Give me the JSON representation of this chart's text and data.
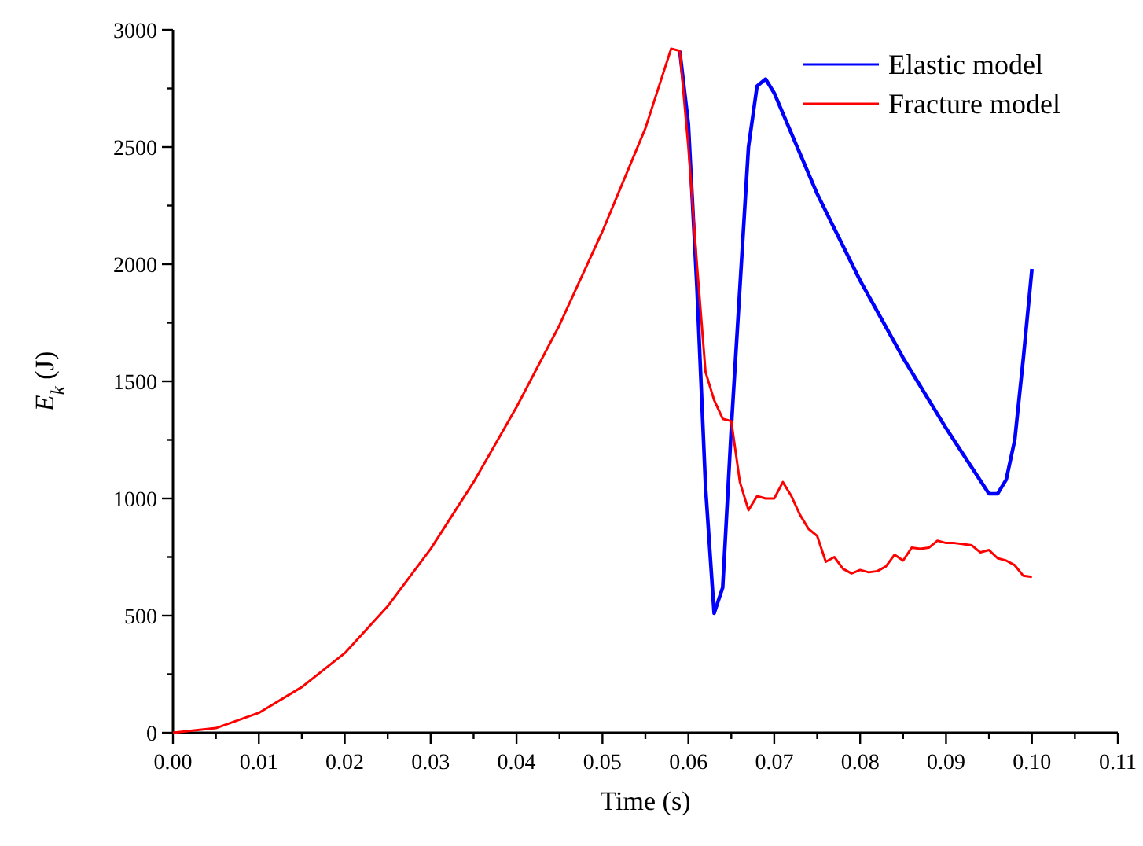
{
  "chart_data": {
    "type": "line",
    "xlabel": "Time (s)",
    "ylabel": "E$_{k}$ (J)",
    "xlim": [
      0,
      0.11
    ],
    "ylim": [
      0,
      3000
    ],
    "xticks": [
      {
        "value": 0,
        "label": "0.00"
      },
      {
        "value": 0.005,
        "label": null
      },
      {
        "value": 0.01,
        "label": "0.01"
      },
      {
        "value": 0.015,
        "label": null
      },
      {
        "value": 0.02,
        "label": "0.02"
      },
      {
        "value": 0.025,
        "label": null
      },
      {
        "value": 0.03,
        "label": "0.03"
      },
      {
        "value": 0.035,
        "label": null
      },
      {
        "value": 0.04,
        "label": "0.04"
      },
      {
        "value": 0.045,
        "label": null
      },
      {
        "value": 0.05,
        "label": "0.05"
      },
      {
        "value": 0.055,
        "label": null
      },
      {
        "value": 0.06,
        "label": "0.06"
      },
      {
        "value": 0.065,
        "label": null
      },
      {
        "value": 0.07,
        "label": "0.07"
      },
      {
        "value": 0.075,
        "label": null
      },
      {
        "value": 0.08,
        "label": "0.08"
      },
      {
        "value": 0.085,
        "label": null
      },
      {
        "value": 0.09,
        "label": "0.09"
      },
      {
        "value": 0.095,
        "label": null
      },
      {
        "value": 0.1,
        "label": "0.10"
      },
      {
        "value": 0.105,
        "label": null
      },
      {
        "value": 0.11,
        "label": "0.11"
      }
    ],
    "yticks": [
      0,
      {
        "value": 250,
        "label": null
      },
      500,
      {
        "value": 750,
        "label": null
      },
      1000,
      {
        "value": 1250,
        "label": null
      },
      1500,
      {
        "value": 1750,
        "label": null
      },
      2000,
      {
        "value": 2250,
        "label": null
      },
      2500,
      {
        "value": 2750,
        "label": null
      },
      3000
    ],
    "legend": "top right",
    "grid": false,
    "marker": "none",
    "line_style": "solid",
    "series": [
      {
        "name": "Elastic model",
        "color": "#0000ff",
        "x": [
          0.059,
          0.06,
          0.061,
          0.062,
          0.063,
          0.064,
          0.065,
          0.066,
          0.067,
          0.068,
          0.069,
          0.07,
          0.075,
          0.08,
          0.085,
          0.09,
          0.095,
          0.096,
          0.097,
          0.098,
          0.099,
          0.1
        ],
        "values": [
          2910,
          2600,
          1900,
          1050,
          510,
          620,
          1300,
          1900,
          2500,
          2760,
          2790,
          2730,
          2300,
          1930,
          1600,
          1300,
          1020,
          1020,
          1080,
          1250,
          1600,
          1980
        ]
      },
      {
        "name": "Fracture model",
        "color": "#ff0000",
        "x": [
          0,
          0.005,
          0.01,
          0.015,
          0.02,
          0.025,
          0.03,
          0.035,
          0.04,
          0.045,
          0.05,
          0.055,
          0.058,
          0.059,
          0.06,
          0.061,
          0.062,
          0.063,
          0.064,
          0.065,
          0.066,
          0.067,
          0.068,
          0.069,
          0.07,
          0.071,
          0.072,
          0.073,
          0.074,
          0.075,
          0.076,
          0.077,
          0.078,
          0.079,
          0.08,
          0.081,
          0.082,
          0.083,
          0.084,
          0.085,
          0.086,
          0.087,
          0.088,
          0.089,
          0.09,
          0.091,
          0.092,
          0.093,
          0.094,
          0.095,
          0.096,
          0.097,
          0.098,
          0.099,
          0.1
        ],
        "values": [
          0,
          20,
          85,
          195,
          340,
          540,
          785,
          1070,
          1390,
          1740,
          2140,
          2580,
          2920,
          2910,
          2500,
          2000,
          1540,
          1420,
          1340,
          1330,
          1070,
          950,
          1010,
          1000,
          1000,
          1070,
          1010,
          930,
          870,
          840,
          730,
          750,
          700,
          680,
          695,
          685,
          690,
          710,
          760,
          735,
          790,
          785,
          790,
          820,
          810,
          810,
          805,
          800,
          770,
          780,
          745,
          735,
          715,
          670,
          665
        ]
      }
    ]
  }
}
